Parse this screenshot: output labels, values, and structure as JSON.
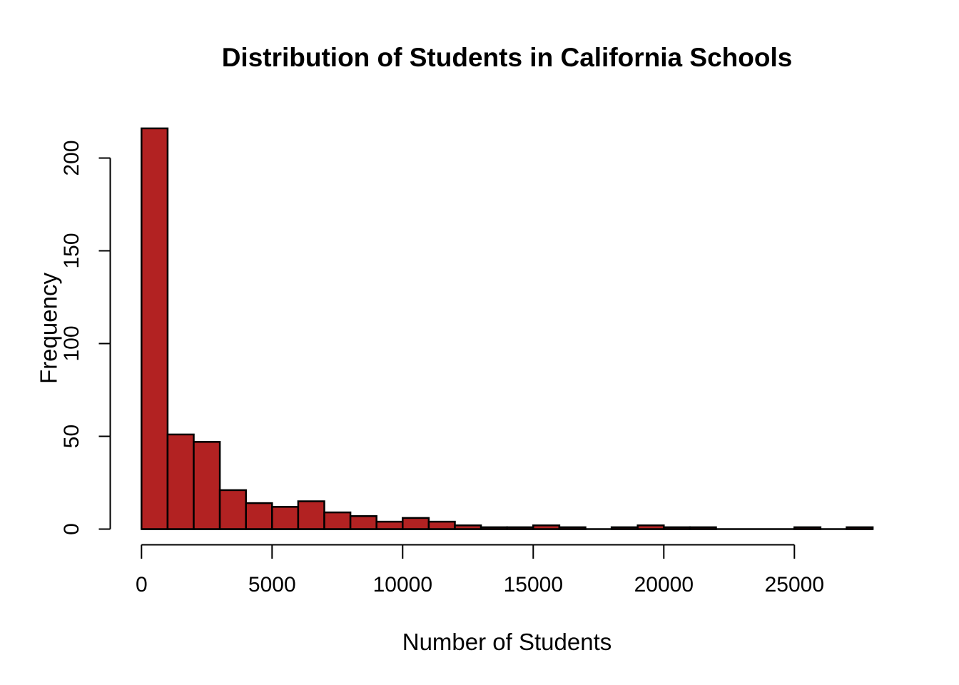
{
  "chart_data": {
    "type": "bar",
    "subtype": "histogram",
    "title": "Distribution of Students in California Schools",
    "xlabel": "Number of Students",
    "ylabel": "Frequency",
    "bin_width": 1000,
    "bin_edges": [
      0,
      1000,
      2000,
      3000,
      4000,
      5000,
      6000,
      7000,
      8000,
      9000,
      10000,
      11000,
      12000,
      13000,
      14000,
      15000,
      16000,
      17000,
      18000,
      19000,
      20000,
      21000,
      22000,
      23000,
      24000,
      25000,
      26000,
      27000,
      28000
    ],
    "counts": [
      216,
      51,
      47,
      21,
      14,
      12,
      15,
      9,
      7,
      4,
      6,
      4,
      2,
      1,
      1,
      2,
      1,
      0,
      1,
      2,
      1,
      1,
      0,
      0,
      0,
      1,
      0,
      1
    ],
    "total_observations": 420,
    "x_tick_values": [
      0,
      5000,
      10000,
      15000,
      20000,
      25000
    ],
    "x_tick_labels": [
      "0",
      "5000",
      "10000",
      "15000",
      "20000",
      "25000"
    ],
    "y_tick_values": [
      0,
      50,
      100,
      150,
      200
    ],
    "y_tick_labels": [
      "0",
      "50",
      "100",
      "150",
      "200"
    ],
    "xlim": [
      0,
      28000
    ],
    "ylim": [
      0,
      216
    ],
    "grid": false,
    "legend": null,
    "bar_fill": "#B22222",
    "bar_stroke": "#000000",
    "axis_color": "#000000",
    "text_color": "#000000",
    "background": "#FFFFFF"
  }
}
